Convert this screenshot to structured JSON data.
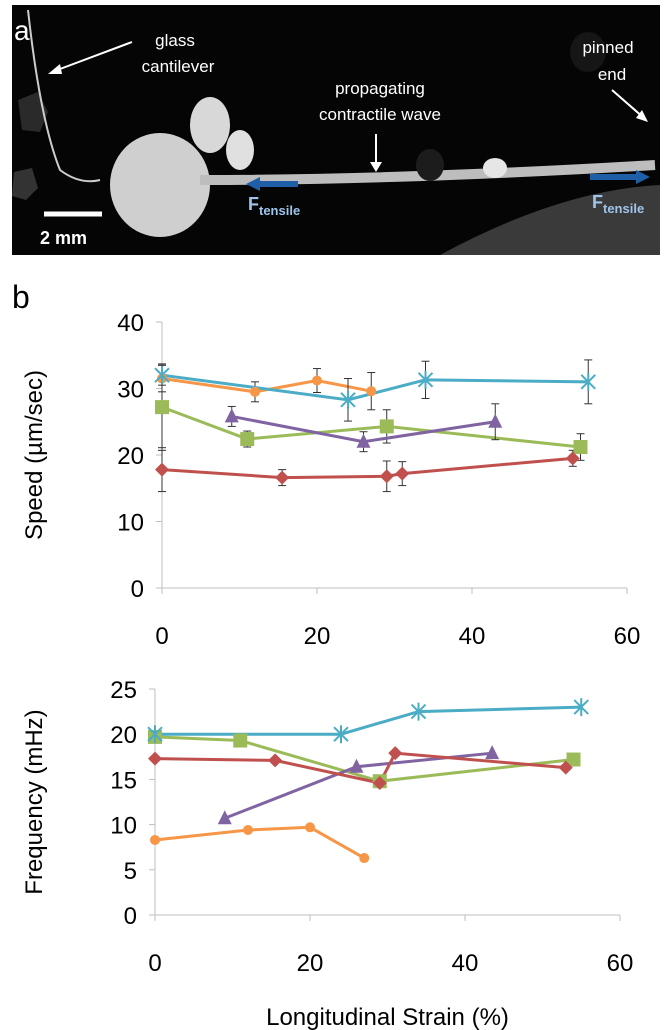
{
  "figure": {
    "panel_a": {
      "label": "a",
      "glass": [
        "glass",
        "cantilever"
      ],
      "pinned": [
        "pinned",
        "end"
      ],
      "wave": [
        "propagating",
        "contractile wave"
      ],
      "force_left": {
        "main": "F",
        "sub": "tensile"
      },
      "force_right": {
        "main": "F",
        "sub": "tensile"
      },
      "scale_bar": "2 mm"
    },
    "panel_b_label": "b"
  },
  "chart_data": [
    {
      "type": "line",
      "ylabel": "Speed (µm/sec)",
      "xlim": [
        0,
        60
      ],
      "xticks": [
        0,
        20,
        40,
        60
      ],
      "ylim": [
        0,
        40
      ],
      "yticks": [
        0,
        10,
        20,
        30,
        40
      ],
      "grid": false,
      "series": [
        {
          "color": "#f79646",
          "marker": "circle",
          "x": [
            0,
            12,
            20,
            27
          ],
          "values": [
            31.5,
            29.5,
            31.2,
            29.6
          ],
          "errors": [
            2,
            1.5,
            1.8,
            2.8
          ]
        },
        {
          "color": "#9bbb59",
          "marker": "square",
          "x": [
            0,
            11,
            29,
            54
          ],
          "values": [
            27.2,
            22.4,
            24.3,
            21.2
          ],
          "errors": [
            6.5,
            1.2,
            2.5,
            2
          ]
        },
        {
          "color": "#8064a2",
          "marker": "triangle",
          "x": [
            9,
            26,
            43
          ],
          "values": [
            25.8,
            22,
            25
          ],
          "errors": [
            1.5,
            1.5,
            2.7
          ]
        },
        {
          "color": "#c0504d",
          "marker": "diamond",
          "x": [
            0,
            15.5,
            29,
            31,
            53
          ],
          "values": [
            17.8,
            16.6,
            16.8,
            17.2,
            19.5
          ],
          "errors": [
            3.3,
            1.2,
            2.3,
            1.8,
            1.2
          ]
        },
        {
          "color": "#4bacc6",
          "marker": "asterisk",
          "x": [
            0,
            24,
            34,
            55
          ],
          "values": [
            32,
            28.3,
            31.3,
            31
          ],
          "errors": [
            1.5,
            3.2,
            2.8,
            3.3
          ]
        }
      ]
    },
    {
      "type": "line",
      "ylabel": "Frequency (mHz)",
      "xlabel": "Longitudinal Strain (%)",
      "xlim": [
        0,
        60
      ],
      "xticks": [
        0,
        20,
        40,
        60
      ],
      "ylim": [
        0,
        25
      ],
      "yticks": [
        0,
        5,
        10,
        15,
        20,
        25
      ],
      "grid": false,
      "series": [
        {
          "color": "#f79646",
          "marker": "circle",
          "x": [
            0,
            12,
            20,
            27
          ],
          "values": [
            8.3,
            9.4,
            9.7,
            6.3
          ]
        },
        {
          "color": "#9bbb59",
          "marker": "square",
          "x": [
            0,
            11,
            29,
            54
          ],
          "values": [
            19.7,
            19.3,
            14.8,
            17.2
          ]
        },
        {
          "color": "#8064a2",
          "marker": "triangle",
          "x": [
            9,
            26,
            43.5
          ],
          "values": [
            10.7,
            16.4,
            17.9
          ]
        },
        {
          "color": "#c0504d",
          "marker": "diamond",
          "x": [
            0,
            15.5,
            29,
            31,
            53
          ],
          "values": [
            17.3,
            17.1,
            14.6,
            17.9,
            16.3
          ]
        },
        {
          "color": "#4bacc6",
          "marker": "asterisk",
          "x": [
            0,
            24,
            34,
            55
          ],
          "values": [
            20,
            20,
            22.5,
            23
          ]
        }
      ]
    }
  ]
}
